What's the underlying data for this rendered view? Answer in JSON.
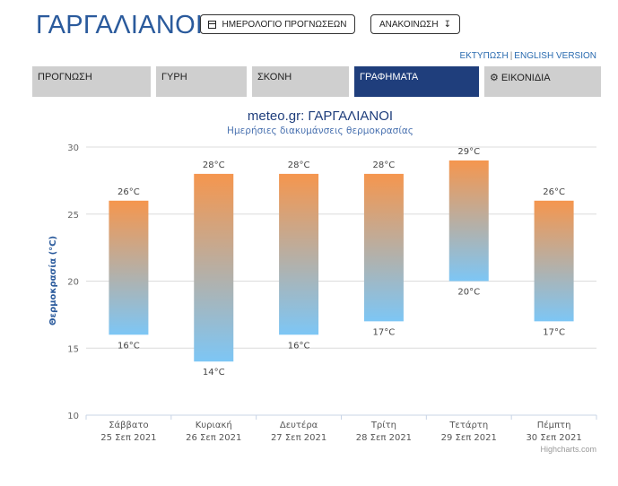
{
  "header": {
    "title": "ΓΑΡΓΑΛΙΑΝΟΙ",
    "calendar_button": "ΗΜΕΡΟΛΟΓΙΟ ΠΡΟΓΝΩΣΕΩΝ",
    "announcement_button": "ΑΝΑΚΟΙΝΩΣΗ",
    "print_link": "ΕΚΤΥΠΩΣΗ",
    "english_link": "ENGLISH VERSION"
  },
  "tabs": [
    {
      "label": "ΠΡΟΓΝΩΣΗ",
      "active": false
    },
    {
      "label": "ΓΥΡΗ",
      "active": false
    },
    {
      "label": "ΣΚΟΝΗ",
      "active": false
    },
    {
      "label": "ΓΡΑΦΗΜΑΤΑ",
      "active": true
    },
    {
      "label": "ΕΙΚΟΝΙΔΙΑ",
      "active": false
    }
  ],
  "colors": {
    "accent": "#1f3e7c",
    "bar_top": "#f5964e",
    "bar_bottom": "#7dc6f5",
    "title": "#2a5a9c"
  },
  "chart_data": {
    "type": "bar",
    "title": "meteo.gr: ΓΑΡΓΑΛΙΑΝΟΙ",
    "subtitle": "Ημερήσιες διακυμάνσεις θερμοκρασίας",
    "ylabel": "Θερμοκρασία (°C)",
    "xlabel": "",
    "ylim": [
      10,
      30
    ],
    "yticks": [
      10,
      15,
      20,
      25,
      30
    ],
    "unit": "°C",
    "credits": "Highcharts.com",
    "categories": [
      {
        "day": "Σάββατο",
        "date": "25 Σεπ 2021"
      },
      {
        "day": "Κυριακή",
        "date": "26 Σεπ 2021"
      },
      {
        "day": "Δευτέρα",
        "date": "27 Σεπ 2021"
      },
      {
        "day": "Τρίτη",
        "date": "28 Σεπ 2021"
      },
      {
        "day": "Τετάρτη",
        "date": "29 Σεπ 2021"
      },
      {
        "day": "Πέμπτη",
        "date": "30 Σεπ 2021"
      }
    ],
    "low": [
      16,
      14,
      16,
      17,
      20,
      17
    ],
    "high": [
      26,
      28,
      28,
      28,
      29,
      26
    ]
  }
}
